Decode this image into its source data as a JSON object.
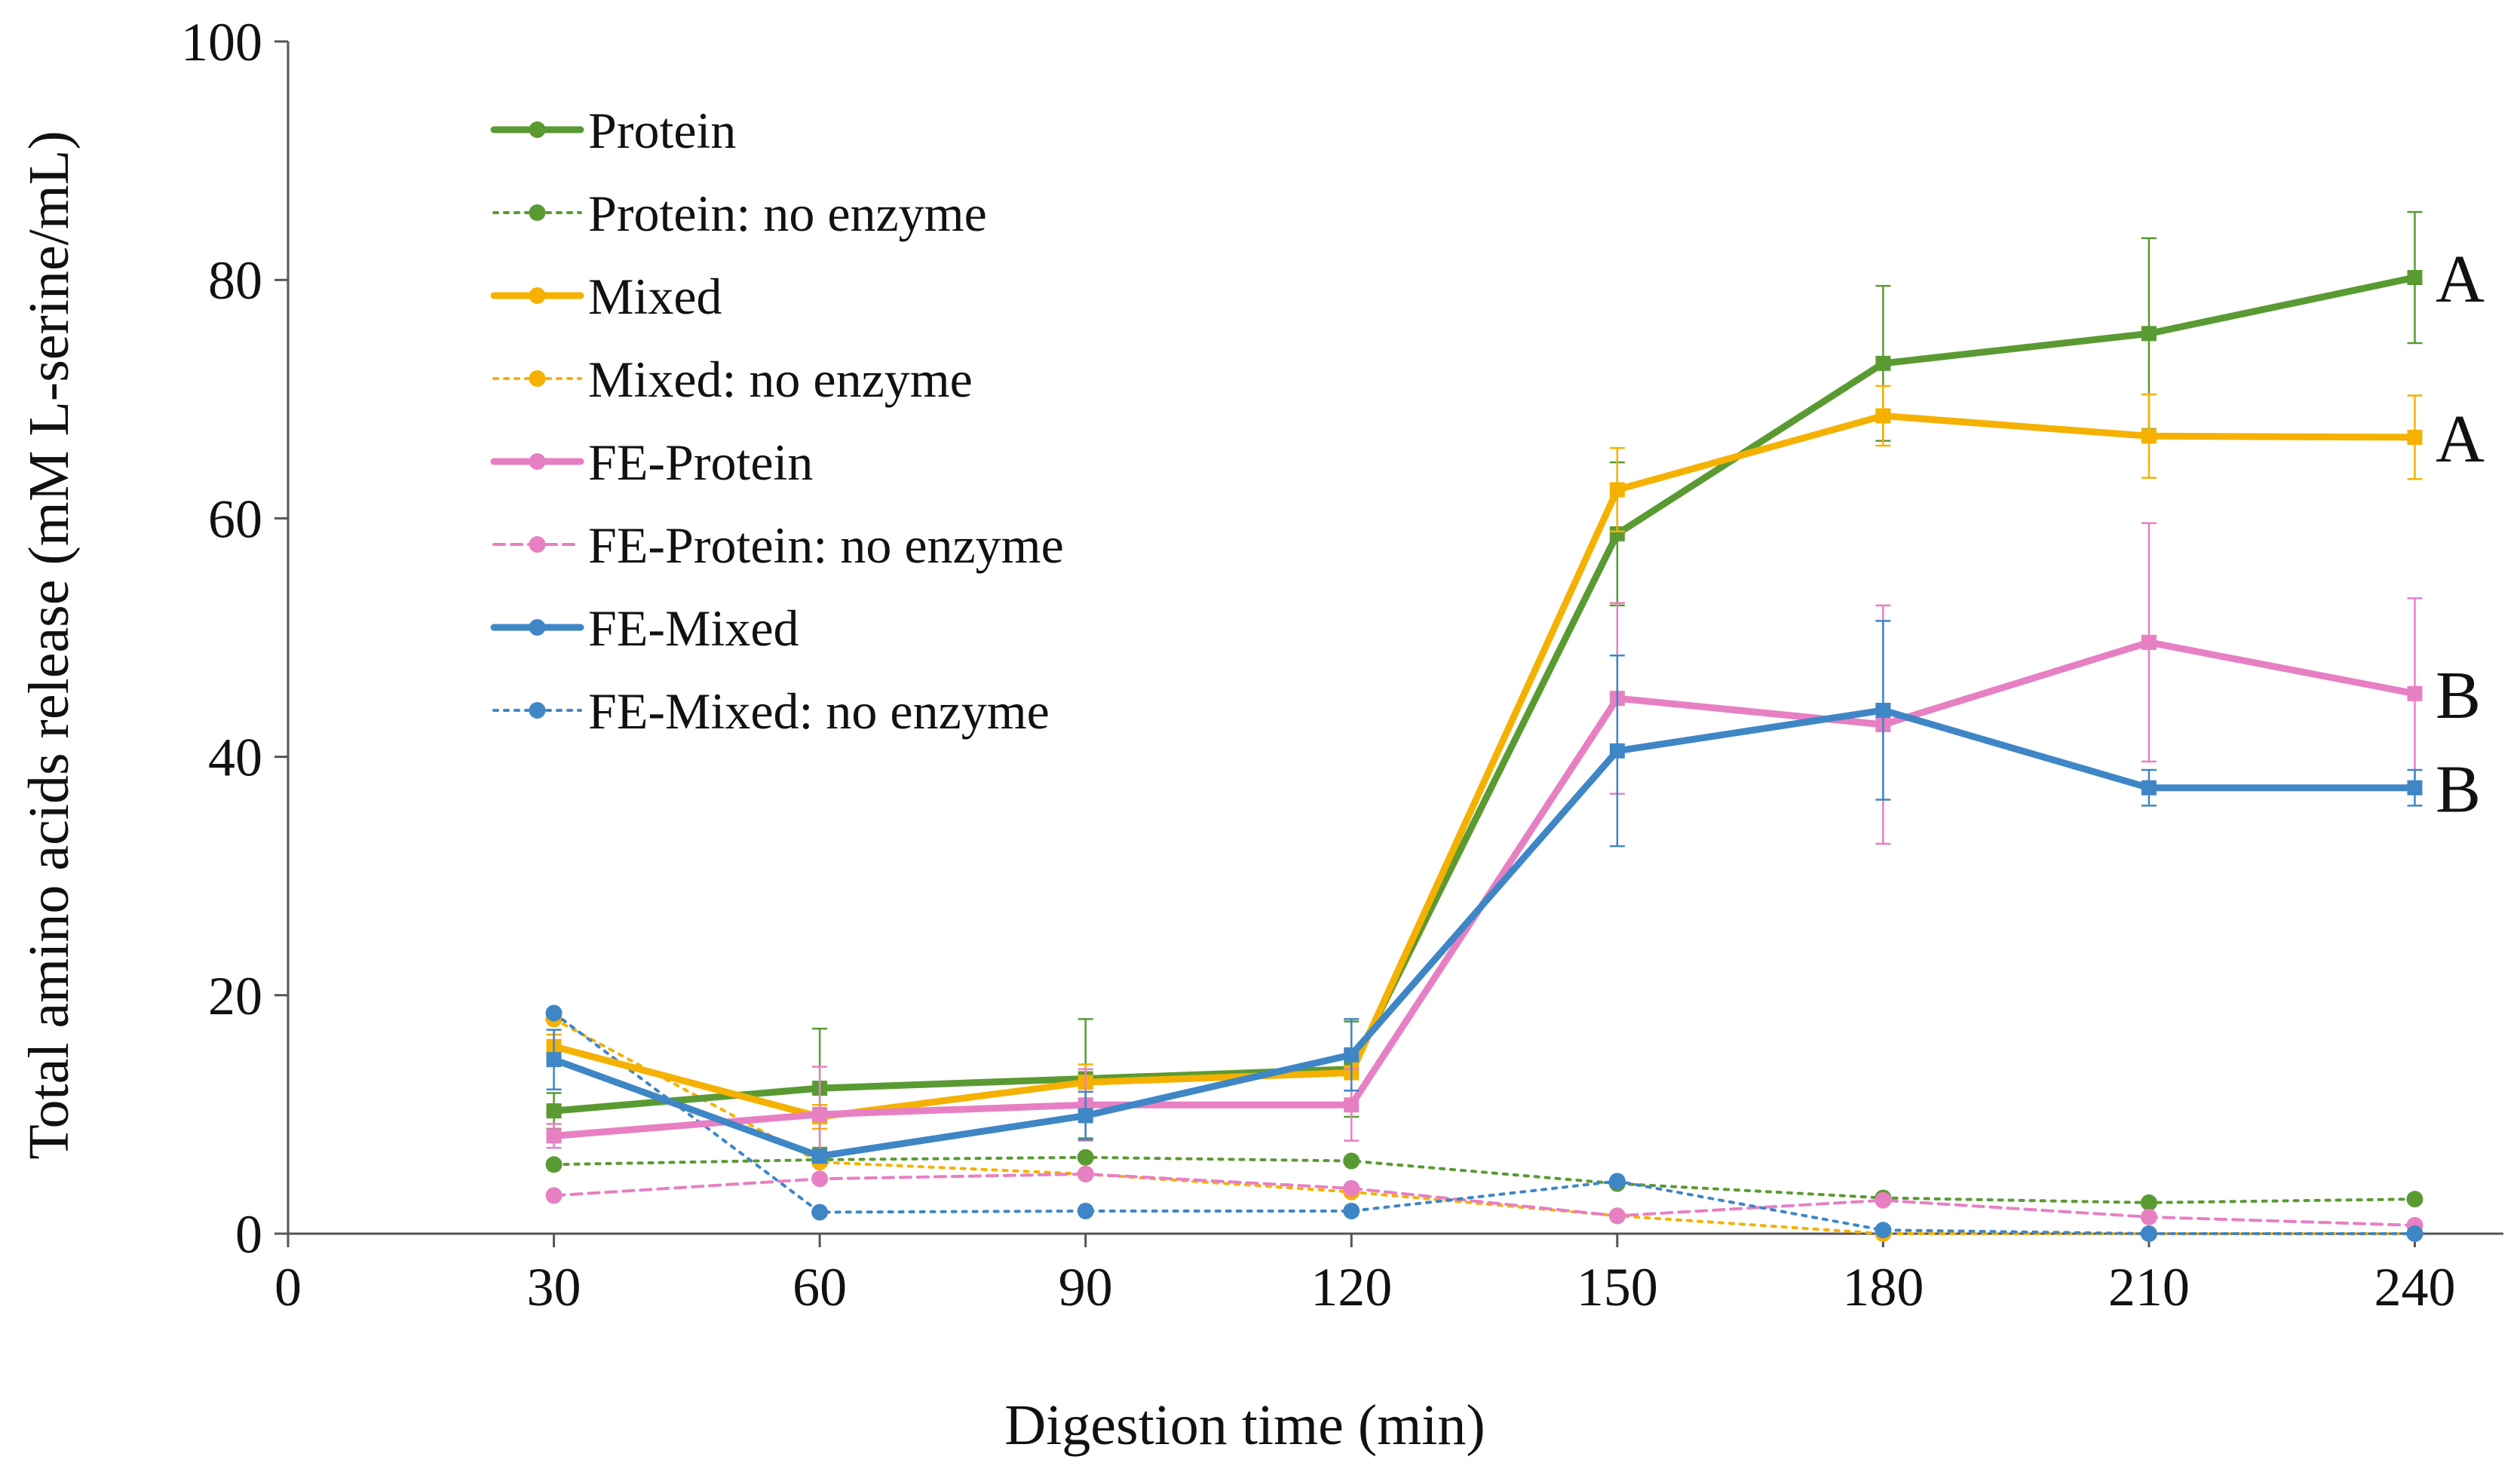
{
  "chart_data": {
    "type": "line",
    "title": "",
    "xlabel": "Digestion time (min)",
    "ylabel": "Total amino acids release (mM  L-serine/mL)",
    "xlim": [
      0,
      250
    ],
    "ylim": [
      0,
      100
    ],
    "x_ticks": [
      "0",
      "30",
      "60",
      "90",
      "120",
      "150",
      "180",
      "210",
      "240"
    ],
    "y_ticks": [
      "0",
      "20",
      "40",
      "60",
      "80",
      "100"
    ],
    "x": [
      30,
      60,
      90,
      120,
      150,
      180,
      210,
      240
    ],
    "legend_position": "top-left",
    "series": [
      {
        "name": "Protein",
        "style": "solid",
        "color": "#5a9a32",
        "values": [
          10.3,
          12.2,
          13.0,
          13.8,
          58.7,
          73.0,
          75.5,
          80.2
        ],
        "errors": [
          1.5,
          5.0,
          5.0,
          4.0,
          6.0,
          6.5,
          8.0,
          5.5
        ]
      },
      {
        "name": "Protein: no enzyme",
        "style": "dotted",
        "color": "#5a9a32",
        "values": [
          5.8,
          6.2,
          6.4,
          6.1,
          4.2,
          3.0,
          2.6,
          2.9
        ],
        "errors": null
      },
      {
        "name": "Mixed",
        "style": "solid",
        "color": "#f5b100",
        "values": [
          15.7,
          9.8,
          12.7,
          13.5,
          62.4,
          68.6,
          66.9,
          66.8
        ],
        "errors": [
          1.0,
          1.0,
          1.5,
          1.5,
          3.5,
          2.5,
          3.5,
          3.5
        ]
      },
      {
        "name": "Mixed: no enzyme",
        "style": "dotted",
        "color": "#f5b100",
        "values": [
          18.0,
          6.0,
          5.0,
          3.5,
          1.5,
          0.0,
          0.0,
          0.0
        ],
        "errors": null
      },
      {
        "name": "FE-Protein",
        "style": "solid",
        "color": "#e77fc3",
        "values": [
          8.2,
          10.0,
          10.8,
          10.8,
          44.9,
          42.7,
          49.6,
          45.3
        ],
        "errors": [
          1.0,
          4.0,
          3.0,
          3.0,
          8.0,
          10.0,
          10.0,
          8.0
        ]
      },
      {
        "name": "FE-Protein: no enzyme",
        "style": "dashed",
        "color": "#e77fc3",
        "values": [
          3.2,
          4.6,
          5.0,
          3.8,
          1.5,
          2.8,
          1.4,
          0.7
        ],
        "errors": null
      },
      {
        "name": "FE-Mixed",
        "style": "solid",
        "color": "#3f86c6",
        "values": [
          14.6,
          6.5,
          9.9,
          15.0,
          40.5,
          43.9,
          37.4,
          37.4
        ],
        "errors": [
          2.5,
          0.5,
          2.0,
          3.0,
          8.0,
          7.5,
          1.5,
          1.5
        ]
      },
      {
        "name": "FE-Mixed: no enzyme",
        "style": "dotted",
        "color": "#3f86c6",
        "values": [
          18.5,
          1.8,
          1.9,
          1.9,
          4.4,
          0.3,
          0.0,
          0.0
        ],
        "errors": null
      }
    ],
    "group_labels": [
      {
        "text": "A",
        "series": "Protein"
      },
      {
        "text": "A",
        "series": "Mixed"
      },
      {
        "text": "B",
        "series": "FE-Protein"
      },
      {
        "text": "B",
        "series": "FE-Mixed"
      }
    ]
  }
}
